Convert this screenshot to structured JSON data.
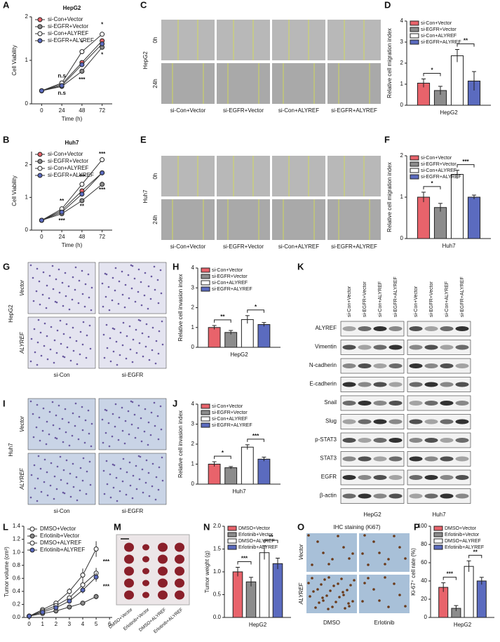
{
  "chart_data": [
    {
      "panel": "A",
      "type": "line",
      "title": "HepG2",
      "x": [
        0,
        24,
        48,
        72
      ],
      "xlim": [
        -12,
        84
      ],
      "xticks": [
        0,
        24,
        48,
        72
      ],
      "ylim": [
        0,
        2
      ],
      "yticks": [
        0,
        1,
        2
      ],
      "xlabel": "Time (h)",
      "ylabel": "Cell Viability",
      "legend": "upper left",
      "series": [
        {
          "name": "si-Con+Vector",
          "color": "#e8636b",
          "values": [
            0.3,
            0.45,
            0.95,
            1.45
          ]
        },
        {
          "name": "si-EGFR+Vector",
          "color": "#8c8c8c",
          "values": [
            0.3,
            0.4,
            0.75,
            1.3
          ]
        },
        {
          "name": "si-Con+ALYREF",
          "color": "#ffffff",
          "values": [
            0.3,
            0.48,
            1.2,
            1.6
          ]
        },
        {
          "name": "si-EGFR+ALYREF",
          "color": "#5b6bbf",
          "values": [
            0.3,
            0.42,
            0.9,
            1.38
          ]
        }
      ],
      "annotations": [
        "n.s",
        "n.s",
        "*",
        "***",
        "*",
        "*"
      ]
    },
    {
      "panel": "B",
      "type": "line",
      "title": "Huh7",
      "x": [
        0,
        24,
        48,
        72
      ],
      "xlim": [
        -12,
        84
      ],
      "xticks": [
        0,
        24,
        48,
        72
      ],
      "ylim": [
        0,
        2.4
      ],
      "yticks": [
        0,
        1,
        2
      ],
      "xlabel": "Time (h)",
      "ylabel": "Cell Viability",
      "legend": "upper left",
      "series": [
        {
          "name": "si-Con+Vector",
          "color": "#e8636b",
          "values": [
            0.3,
            0.6,
            1.2,
            1.75
          ]
        },
        {
          "name": "si-EGFR+Vector",
          "color": "#8c8c8c",
          "values": [
            0.3,
            0.5,
            0.9,
            1.4
          ]
        },
        {
          "name": "si-Con+ALYREF",
          "color": "#ffffff",
          "values": [
            0.3,
            0.65,
            1.4,
            2.15
          ]
        },
        {
          "name": "si-EGFR+ALYREF",
          "color": "#5b6bbf",
          "values": [
            0.3,
            0.55,
            1.1,
            1.75
          ]
        }
      ],
      "annotations": [
        "**",
        "***",
        "***",
        "**",
        "***",
        "***"
      ]
    },
    {
      "panel": "D",
      "type": "bar",
      "categories": [
        "HepG2"
      ],
      "ylim": [
        0,
        4
      ],
      "yticks": [
        0,
        1,
        2,
        3,
        4
      ],
      "ylabel": "Relative cell migration index",
      "legend": "upper left",
      "series": [
        {
          "name": "si-Con+Vector",
          "color": "#e8636b",
          "values": [
            1.05
          ],
          "errors": [
            0.2
          ]
        },
        {
          "name": "si-EGFR+Vector",
          "color": "#8c8c8c",
          "values": [
            0.7
          ],
          "errors": [
            0.2
          ]
        },
        {
          "name": "si-Con+ALYREF",
          "color": "#ffffff",
          "values": [
            2.35
          ],
          "errors": [
            0.3
          ]
        },
        {
          "name": "si-EGFR+ALYREF",
          "color": "#5b6bbf",
          "values": [
            1.15
          ],
          "errors": [
            0.45
          ]
        }
      ],
      "annotations": [
        "*",
        "**"
      ]
    },
    {
      "panel": "F",
      "type": "bar",
      "categories": [
        "Huh7"
      ],
      "ylim": [
        0,
        2
      ],
      "yticks": [
        0,
        1,
        2
      ],
      "ylabel": "Relative cell migration index",
      "legend": "upper left",
      "series": [
        {
          "name": "si-Con+Vector",
          "color": "#e8636b",
          "values": [
            1.0
          ],
          "errors": [
            0.12
          ]
        },
        {
          "name": "si-EGFR+Vector",
          "color": "#8c8c8c",
          "values": [
            0.75
          ],
          "errors": [
            0.1
          ]
        },
        {
          "name": "si-Con+ALYREF",
          "color": "#ffffff",
          "values": [
            1.55
          ],
          "errors": [
            0.1
          ]
        },
        {
          "name": "si-EGFR+ALYREF",
          "color": "#5b6bbf",
          "values": [
            1.0
          ],
          "errors": [
            0.05
          ]
        }
      ],
      "annotations": [
        "*",
        "***"
      ]
    },
    {
      "panel": "H",
      "type": "bar",
      "categories": [
        "HepG2"
      ],
      "ylim": [
        0,
        4
      ],
      "yticks": [
        0,
        1,
        2,
        3,
        4
      ],
      "ylabel": "Relative cell invasion index",
      "legend": "upper left",
      "series": [
        {
          "name": "si-Con+Vector",
          "color": "#e8636b",
          "values": [
            1.0
          ],
          "errors": [
            0.1
          ]
        },
        {
          "name": "si-EGFR+Vector",
          "color": "#8c8c8c",
          "values": [
            0.75
          ],
          "errors": [
            0.1
          ]
        },
        {
          "name": "si-Con+ALYREF",
          "color": "#ffffff",
          "values": [
            1.4
          ],
          "errors": [
            0.2
          ]
        },
        {
          "name": "si-EGFR+ALYREF",
          "color": "#5b6bbf",
          "values": [
            1.15
          ],
          "errors": [
            0.1
          ]
        }
      ],
      "annotations": [
        "**",
        "*"
      ]
    },
    {
      "panel": "J",
      "type": "bar",
      "categories": [
        "Huh7"
      ],
      "ylim": [
        0,
        4
      ],
      "yticks": [
        0,
        1,
        2,
        3,
        4
      ],
      "ylabel": "Relative cell invasion index",
      "legend": "upper left",
      "series": [
        {
          "name": "si-Con+Vector",
          "color": "#e8636b",
          "values": [
            1.0
          ],
          "errors": [
            0.12
          ]
        },
        {
          "name": "si-EGFR+Vector",
          "color": "#8c8c8c",
          "values": [
            0.82
          ],
          "errors": [
            0.06
          ]
        },
        {
          "name": "si-Con+ALYREF",
          "color": "#ffffff",
          "values": [
            1.85
          ],
          "errors": [
            0.12
          ]
        },
        {
          "name": "si-EGFR+ALYREF",
          "color": "#5b6bbf",
          "values": [
            1.25
          ],
          "errors": [
            0.1
          ]
        }
      ],
      "annotations": [
        "*",
        "***"
      ]
    },
    {
      "panel": "L",
      "type": "line",
      "x": [
        0,
        1,
        2,
        3,
        4,
        5
      ],
      "xlim": [
        -0.4,
        6.2
      ],
      "xticks": [
        0,
        1,
        2,
        3,
        4,
        5,
        6
      ],
      "ylim": [
        0,
        1.4
      ],
      "yticks": [
        {
          "value": 0,
          "label": "0.0"
        },
        0.2,
        0.4,
        0.6,
        0.8,
        {
          "value": 1,
          "label": "1.0"
        },
        1.2,
        1.4
      ],
      "ylabel": "Tumor volume (cm³)",
      "legend": "upper left",
      "series": [
        {
          "name": "DMSO+Vector",
          "color": "#ffffff",
          "values": [
            0.02,
            0.12,
            0.22,
            0.4,
            0.65,
            1.05
          ],
          "errors": [
            0.01,
            0.02,
            0.03,
            0.05,
            0.1,
            0.12
          ]
        },
        {
          "name": "Erlotinib+Vector",
          "color": "#8c8c8c",
          "values": [
            0.02,
            0.06,
            0.1,
            0.16,
            0.22,
            0.32
          ],
          "errors": [
            0.01,
            0.01,
            0.02,
            0.02,
            0.03,
            0.04
          ]
        },
        {
          "name": "DMSO+ALYREF",
          "color": "#ffffff",
          "values": [
            0.02,
            0.1,
            0.18,
            0.3,
            0.5,
            0.68
          ],
          "errors": [
            0.01,
            0.02,
            0.02,
            0.04,
            0.06,
            0.08
          ]
        },
        {
          "name": "Erlotinib+ALYREF",
          "color": "#5b6bbf",
          "values": [
            0.02,
            0.08,
            0.15,
            0.25,
            0.42,
            0.62
          ],
          "errors": [
            0.01,
            0.01,
            0.02,
            0.03,
            0.05,
            0.07
          ]
        }
      ],
      "annotations": [
        "***",
        "***"
      ]
    },
    {
      "panel": "N",
      "type": "bar",
      "categories": [
        "HepG2"
      ],
      "ylim": [
        0,
        2
      ],
      "yticks": [
        {
          "value": 0,
          "label": "0.0"
        },
        0.5,
        {
          "value": 1,
          "label": "1.0"
        },
        1.5,
        {
          "value": 2,
          "label": "2.0"
        }
      ],
      "ylabel": "Tumor weight (g)",
      "legend": "upper left",
      "series": [
        {
          "name": "DMSO+Vector",
          "color": "#e8636b",
          "values": [
            1.0
          ],
          "errors": [
            0.1
          ]
        },
        {
          "name": "Erlotinib+Vector",
          "color": "#8c8c8c",
          "values": [
            0.78
          ],
          "errors": [
            0.1
          ]
        },
        {
          "name": "DMSO+ALYREF",
          "color": "#ffffff",
          "values": [
            1.42
          ],
          "errors": [
            0.15
          ]
        },
        {
          "name": "Erlotinib+ALYREF",
          "color": "#5b6bbf",
          "values": [
            1.18
          ],
          "errors": [
            0.12
          ]
        }
      ],
      "annotations": [
        "***",
        "**"
      ]
    },
    {
      "panel": "P",
      "type": "bar",
      "categories": [
        "HepG2"
      ],
      "ylim": [
        0,
        100
      ],
      "yticks": [
        0,
        20,
        40,
        60,
        80,
        100
      ],
      "ylabel": "Ki-67⁺ cell rate (%)",
      "legend": "upper left",
      "series": [
        {
          "name": "DMSO+Vector",
          "color": "#e8636b",
          "values": [
            33
          ],
          "errors": [
            5
          ]
        },
        {
          "name": "Erlotinib+Vector",
          "color": "#8c8c8c",
          "values": [
            10
          ],
          "errors": [
            3
          ]
        },
        {
          "name": "DMSO+ALYREF",
          "color": "#ffffff",
          "values": [
            56
          ],
          "errors": [
            6
          ]
        },
        {
          "name": "Erlotinib+ALYREF",
          "color": "#5b6bbf",
          "values": [
            40
          ],
          "errors": [
            4
          ]
        }
      ],
      "annotations": [
        "***",
        "**"
      ]
    }
  ],
  "wound_assays": [
    {
      "panel": "C",
      "cell_line": "HepG2",
      "row_labels": [
        "0h",
        "24h"
      ],
      "col_labels": [
        "si-Con+Vector",
        "si-EGFR+Vector",
        "si-Con+ALYREF",
        "si-EGFR+ALYREF"
      ]
    },
    {
      "panel": "E",
      "cell_line": "Huh7",
      "row_labels": [
        "0h",
        "24h"
      ],
      "col_labels": [
        "si-Con+Vector",
        "si-EGFR+Vector",
        "si-Con+ALYREF",
        "si-EGFR+ALYREF"
      ]
    }
  ],
  "invasion_assays": [
    {
      "panel": "G",
      "cell_line": "HepG2",
      "row_labels": [
        "Vector",
        "ALYREF"
      ],
      "col_labels": [
        "si-Con",
        "si-EGFR"
      ]
    },
    {
      "panel": "I",
      "cell_line": "Huh7",
      "row_labels": [
        "Vector",
        "ALYREF"
      ],
      "col_labels": [
        "si-Con",
        "si-EGFR"
      ]
    }
  ],
  "western_blot": {
    "panel": "K",
    "lanes": [
      "si-Con+Vector",
      "si-EGFR+Vector",
      "si-Con+ALYREF",
      "si-EGFR+ALYREF",
      "si-Con+Vector",
      "si-EGFR+Vector",
      "si-Con+ALYREF",
      "si-EGFR+ALYREF"
    ],
    "proteins": [
      "ALYREF",
      "Vimentin",
      "N-cadherin",
      "E-cadherin",
      "Snail",
      "Slug",
      "p-STAT3",
      "STAT3",
      "EGFR",
      "β-actin"
    ],
    "cell_lines": [
      "HepG2",
      "Huh7"
    ]
  },
  "tumor_photo": {
    "panel": "M",
    "lanes": [
      "DMSO+Vector",
      "Erlotinib+Vector",
      "DMSO+ALYREF",
      "Erlotinib+ALYREF"
    ]
  },
  "ihc": {
    "panel": "O",
    "title": "IHC staining (Ki67)",
    "row_labels": [
      "Vector",
      "ALYREF"
    ],
    "col_labels": [
      "DMSO",
      "Erlotinib"
    ]
  }
}
